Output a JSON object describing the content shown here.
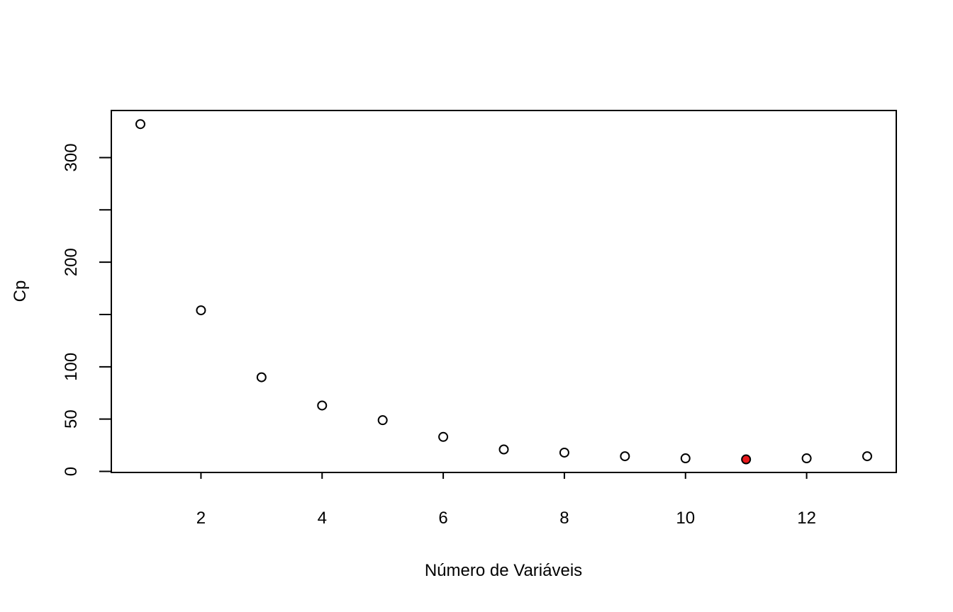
{
  "chart_data": {
    "type": "scatter",
    "title": "",
    "xlabel": "Número de Variáveis",
    "ylabel": "Cp",
    "xlim": [
      0.52,
      13.48
    ],
    "ylim": [
      -1,
      345
    ],
    "x_ticks": [
      2,
      4,
      6,
      8,
      10,
      12
    ],
    "x_tick_labels": [
      "2",
      "4",
      "6",
      "8",
      "10",
      "12"
    ],
    "y_ticks": [
      0,
      50,
      100,
      150,
      200,
      250,
      300
    ],
    "y_tick_labels": [
      "0",
      "50",
      "100",
      "",
      "200",
      "",
      "300"
    ],
    "grid": false,
    "legend": "none",
    "series": [
      {
        "x": [
          1,
          2,
          3,
          4,
          5,
          6,
          7,
          8,
          9,
          10,
          11,
          12,
          13
        ],
        "y": [
          332,
          154,
          90,
          63,
          49,
          33,
          21,
          18,
          14.5,
          12.5,
          11.5,
          12.5,
          14.5
        ]
      }
    ],
    "highlight": {
      "x": 11,
      "y": 11.5,
      "color": "#e8191c"
    },
    "point_stroke": "#000000",
    "point_fill": "#ffffff"
  }
}
